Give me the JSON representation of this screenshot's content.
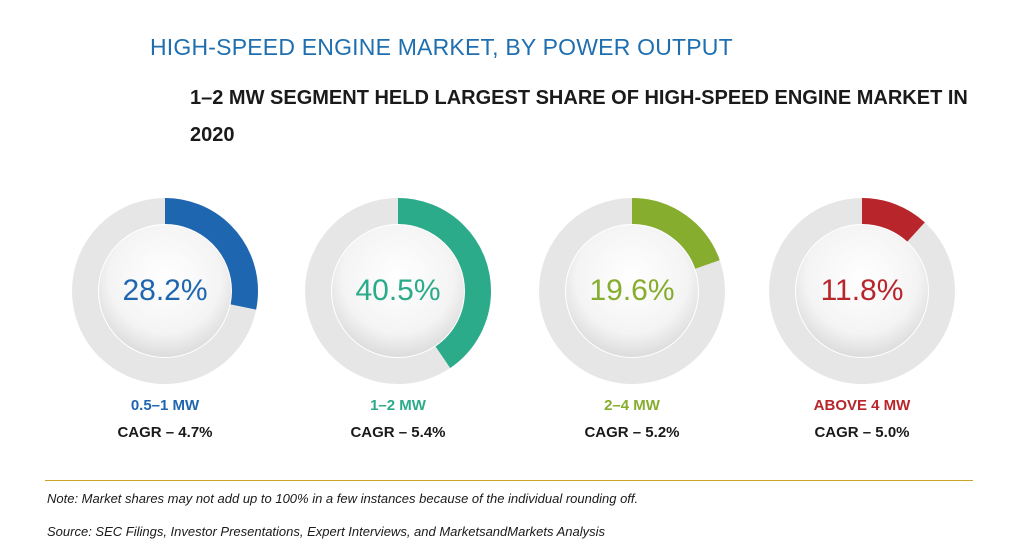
{
  "chart_data": {
    "type": "donut",
    "title": "HIGH-SPEED ENGINE MARKET, BY POWER OUTPUT",
    "subtitle": "1–2 MW SEGMENT HELD LARGEST SHARE OF HIGH-SPEED ENGINE MARKET IN 2020",
    "segments": [
      {
        "name": "0.5–1 MW",
        "value": 28.2,
        "label": "28.2%",
        "cagr": "CAGR – 4.7%",
        "color": "#1f66b0"
      },
      {
        "name": "1–2 MW",
        "value": 40.5,
        "label": "40.5%",
        "cagr": "CAGR – 5.4%",
        "color": "#2bab8a"
      },
      {
        "name": "2–4 MW",
        "value": 19.6,
        "label": "19.6%",
        "cagr": "CAGR – 5.2%",
        "color": "#86ad2e"
      },
      {
        "name": "ABOVE 4 MW",
        "value": 11.8,
        "label": "11.8%",
        "cagr": "CAGR – 5.0%",
        "color": "#b8262b"
      }
    ]
  },
  "footer": {
    "note": "Note: Market shares may not add up to 100% in a few instances because of the individual rounding off.",
    "source": "Source: SEC Filings, Investor Presentations, Expert Interviews, and MarketsandMarkets Analysis"
  }
}
